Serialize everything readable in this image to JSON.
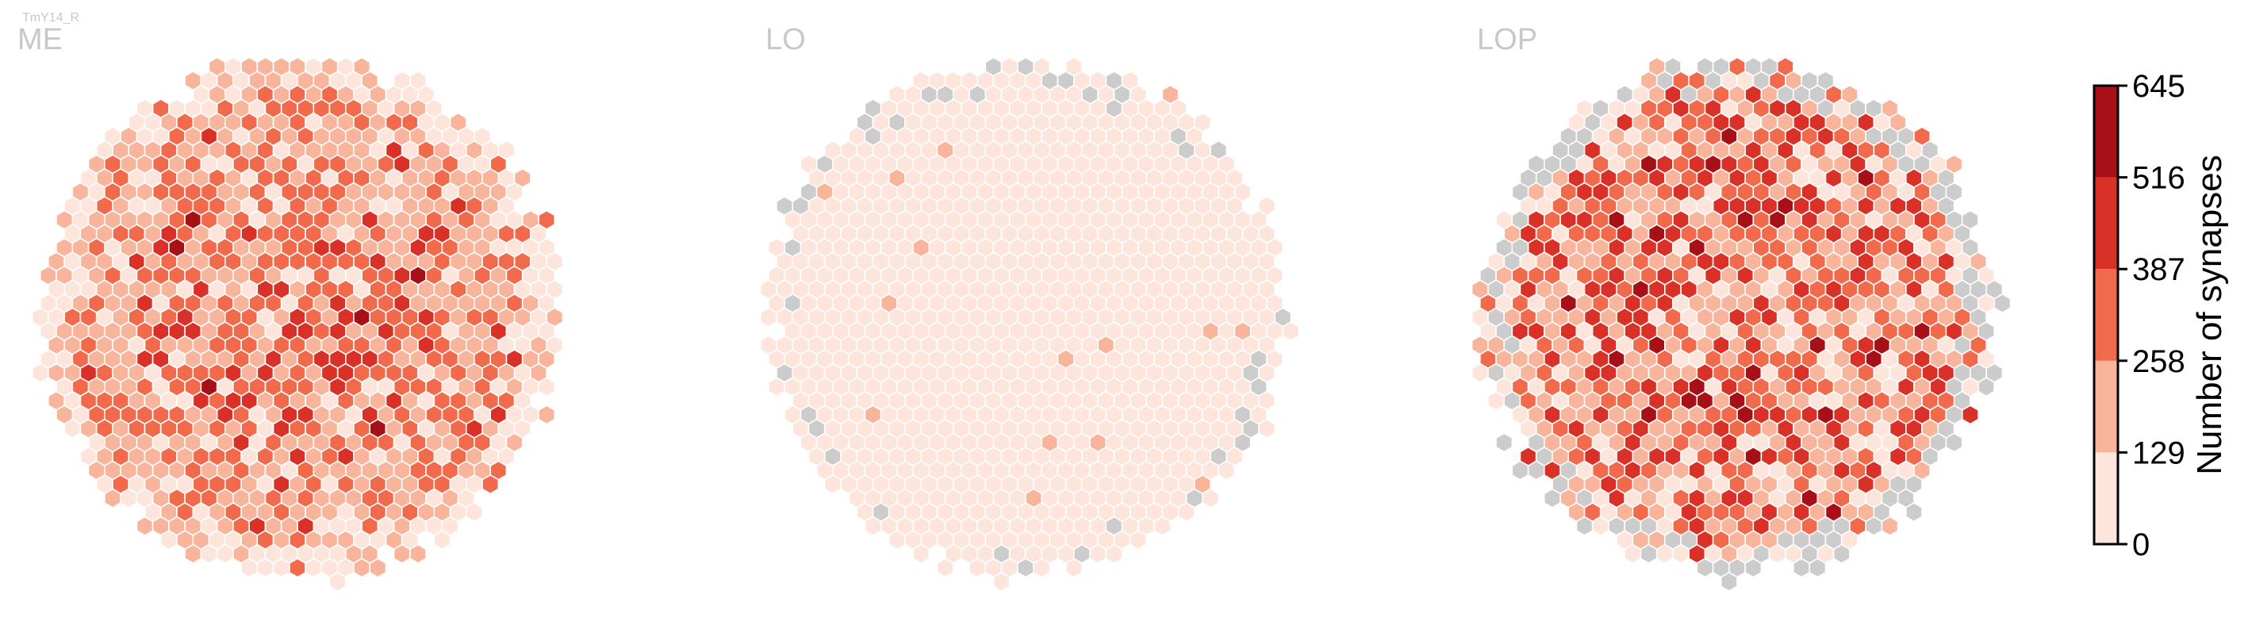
{
  "chart_data": {
    "type": "heatmap",
    "figure_label": "TmY14_R",
    "panels": [
      {
        "name": "ME",
        "grid_fraction": 0.99,
        "level_weights": [
          0.14,
          0.45,
          0.36,
          0.05,
          0,
          0
        ],
        "gray_fraction": 0.0,
        "seed": 11
      },
      {
        "name": "LO",
        "grid_fraction": 0.985,
        "level_weights": [
          0.985,
          0.015,
          0,
          0,
          0,
          0
        ],
        "gray_fraction": 0.025,
        "seed": 23
      },
      {
        "name": "LOP",
        "grid_fraction": 0.985,
        "level_weights": [
          0.16,
          0.34,
          0.27,
          0.19,
          0.04,
          0
        ],
        "gray_fraction": 0.09,
        "seed": 37
      }
    ],
    "colorbar": {
      "label": "Number of synapses",
      "range": [
        0,
        645
      ],
      "ticks": [
        0,
        129,
        258,
        387,
        516,
        645
      ],
      "colors": [
        "#fde5dc",
        "#f9b49c",
        "#f26a4c",
        "#d93128",
        "#a61016"
      ],
      "no_data_color": "#cccccc",
      "edge_color": "#ffffff"
    }
  }
}
